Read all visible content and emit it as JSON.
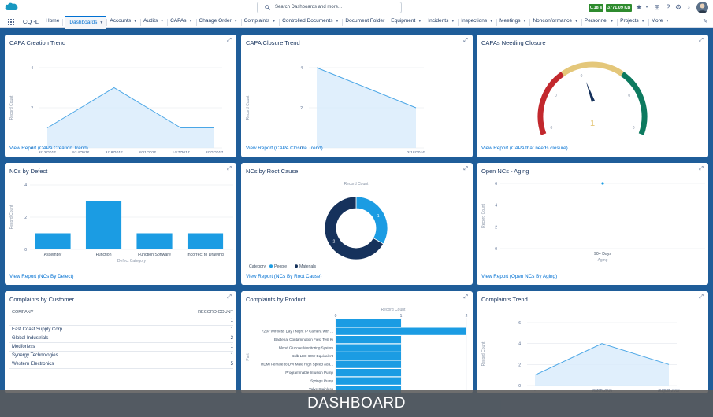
{
  "topbar": {
    "search_placeholder": "Search Dashboards and more...",
    "badge_time": "0.18 s",
    "badge_size": "3771.09 KB"
  },
  "nav": {
    "app_name": "CQ -L",
    "items": [
      {
        "label": "Home",
        "chev": false
      },
      {
        "label": "Dashboards",
        "chev": true
      },
      {
        "label": "Accounts",
        "chev": true
      },
      {
        "label": "Audits",
        "chev": true
      },
      {
        "label": "CAPAs",
        "chev": true
      },
      {
        "label": "Change Order",
        "chev": true
      },
      {
        "label": "Complaints",
        "chev": true
      },
      {
        "label": "Controlled Documents",
        "chev": true
      },
      {
        "label": "Document Folder",
        "chev": false
      },
      {
        "label": "Equipment",
        "chev": true
      },
      {
        "label": "Incidents",
        "chev": true
      },
      {
        "label": "Inspections",
        "chev": true
      },
      {
        "label": "Meetings",
        "chev": true
      },
      {
        "label": "Nonconformance",
        "chev": true
      },
      {
        "label": "Personnel",
        "chev": true
      },
      {
        "label": "Projects",
        "chev": true
      },
      {
        "label": "More",
        "chev": true
      }
    ]
  },
  "cards": {
    "capa_creation": {
      "title": "CAPA Creation Trend",
      "link": "View Report (CAPA Creation Trend)",
      "chart_data": {
        "type": "area",
        "x": [
          "3/13/2016",
          "3/14/2016",
          "3/18/2016",
          "3/21/2016",
          "1/17/2017",
          "8/22/2017"
        ],
        "values": [
          1,
          2,
          3,
          2,
          1,
          1
        ],
        "ylim": [
          0,
          4
        ],
        "yticks": [
          "4",
          "2",
          "0"
        ],
        "xlabel": "CAPA: Created Date",
        "ylabel": "Record Count"
      }
    },
    "capa_closure": {
      "title": "CAPA Closure Trend",
      "link": "View Report (CAPA Closure Trend)",
      "chart_data": {
        "type": "area",
        "x": [
          "-",
          "3/18/2016"
        ],
        "values": [
          4,
          2
        ],
        "ylim": [
          0,
          4
        ],
        "yticks": [
          "4",
          "2",
          "0"
        ],
        "xlabel": "Closed Date",
        "ylabel": "Record Count"
      }
    },
    "capa_needing": {
      "title": "CAPAs Needing Closure",
      "link": "View Report (CAPA that needs closure)",
      "chart_data": {
        "type": "gauge",
        "value": 1,
        "value_label": "1",
        "ticks": [
          "0",
          "0",
          "0",
          "0",
          "0"
        ]
      }
    },
    "nc_defect": {
      "title": "NCs by Defect",
      "link": "View Report (NCs By Defect)",
      "chart_data": {
        "type": "bar",
        "categories": [
          "Assembly",
          "Function",
          "Function/Software",
          "Incorrect to Drawing"
        ],
        "values": [
          1,
          3,
          1,
          1
        ],
        "ylim": [
          0,
          4
        ],
        "yticks": [
          "4",
          "2",
          "0"
        ],
        "xlabel": "Defect Category",
        "ylabel": "Record Count"
      }
    },
    "nc_root": {
      "title": "NCs by Root Cause",
      "link": "View Report (NCs By Root Cause)",
      "chart_data": {
        "type": "pie",
        "title": "Record Count",
        "legend_title": "Category",
        "slices": [
          {
            "label": "People",
            "value": 1,
            "color": "#1b9ce3"
          },
          {
            "label": "Materials",
            "value": 2,
            "color": "#16325c"
          }
        ]
      }
    },
    "open_nc": {
      "title": "Open NCs - Aging",
      "link": "View Report (Open NCs By Aging)",
      "chart_data": {
        "type": "scatter",
        "categories": [
          "90+ Days"
        ],
        "values": [
          6
        ],
        "ylim": [
          0,
          6
        ],
        "yticks": [
          "6",
          "4",
          "2",
          "0"
        ],
        "xlabel": "Aging",
        "ylabel": "Record Count"
      }
    },
    "complaints_customer": {
      "title": "Complaints by Customer",
      "headers": [
        "COMPANY",
        "RECORD COUNT"
      ],
      "rows": [
        {
          "company": "",
          "count": "1"
        },
        {
          "company": "East Coast Supply Corp",
          "count": "1"
        },
        {
          "company": "Global Industrials",
          "count": "2"
        },
        {
          "company": "Medforless",
          "count": "1"
        },
        {
          "company": "Synergy Technologies",
          "count": "1"
        },
        {
          "company": "Western Electronics",
          "count": "5"
        }
      ]
    },
    "complaints_product": {
      "title": "Complaints by Product",
      "chart_data": {
        "type": "bar",
        "orientation": "horizontal",
        "title": "Record Count",
        "categories": [
          "-",
          "720P Wireless Day / Night IP Camera with ...",
          "Bacterial Contamination Field Test Ki",
          "Blood Glucose Monitoring System",
          "Bulb LED 60W Equivalent",
          "HDMI Female to DVI Male High Speed Ada...",
          "Programmable Infusion Pump",
          "Syringe Pump",
          "Valve Stainless"
        ],
        "values": [
          1,
          2,
          1,
          1,
          1,
          1,
          1,
          1,
          1
        ],
        "xlim": [
          0,
          2
        ],
        "xticks": [
          "0",
          "1",
          "2"
        ],
        "ylabel": "Part"
      }
    },
    "complaints_trend": {
      "title": "Complaints Trend",
      "chart_data": {
        "type": "area",
        "x": [
          "-",
          "March 2016",
          "August 2017"
        ],
        "values": [
          1,
          4,
          2
        ],
        "ylim": [
          0,
          6
        ],
        "yticks": [
          "6",
          "4",
          "2",
          "0"
        ],
        "xlabel": "Record Date",
        "ylabel": "Record Count"
      }
    }
  },
  "banner": "DASHBOARD",
  "colors": {
    "accent": "#0070d2",
    "bar": "#1b9ce3",
    "area_fill": "#d8ebfb",
    "area_line": "#4aa6e6",
    "dark": "#16325c"
  }
}
